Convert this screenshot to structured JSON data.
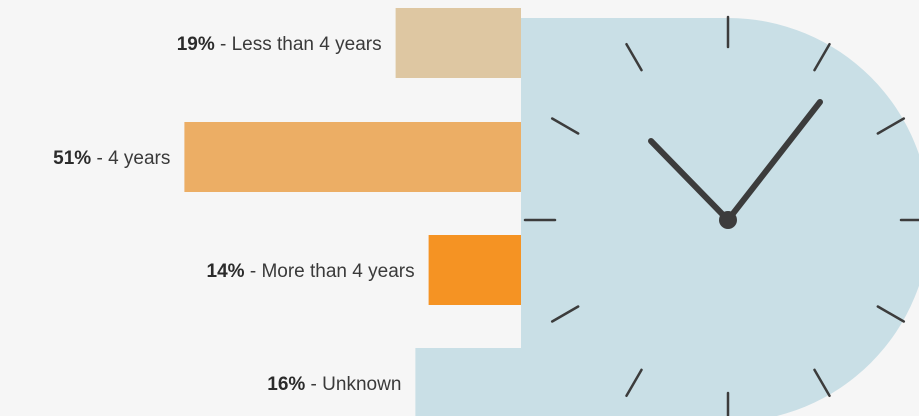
{
  "chart_data": {
    "type": "bar",
    "orientation": "horizontal",
    "grid": false,
    "legend": "none",
    "categories": [
      "Less than 4 years",
      "4 years",
      "More than 4 years",
      "Unknown"
    ],
    "values": [
      19,
      51,
      14,
      16
    ],
    "value_labels": [
      "19%",
      "51%",
      "14%",
      "16%"
    ],
    "separator": " - ",
    "colors": [
      "#dec7a2",
      "#ecae65",
      "#f59323",
      "#c9dfe6"
    ],
    "clock": {
      "face_color": "#c9dfe6",
      "hand_color": "#3c3c3c",
      "icon": "clock-icon"
    }
  }
}
